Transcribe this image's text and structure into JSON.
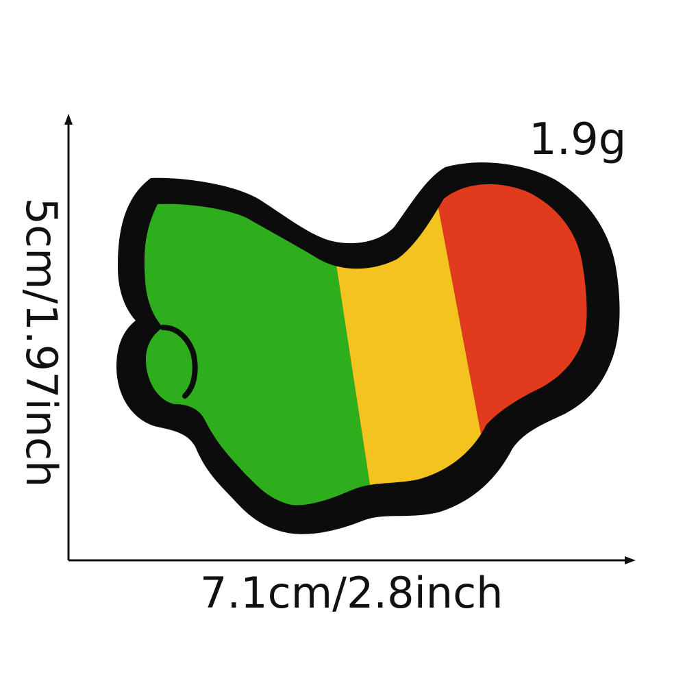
{
  "product": {
    "weight": "1.9g",
    "width_dimension": "7.1cm/2.8inch",
    "height_dimension": "5cm/1.97inch",
    "patch_colors": {
      "outline": "#0c0c0c",
      "green": "#2fae1d",
      "yellow": "#f4c320",
      "red": "#e23a1c"
    }
  }
}
